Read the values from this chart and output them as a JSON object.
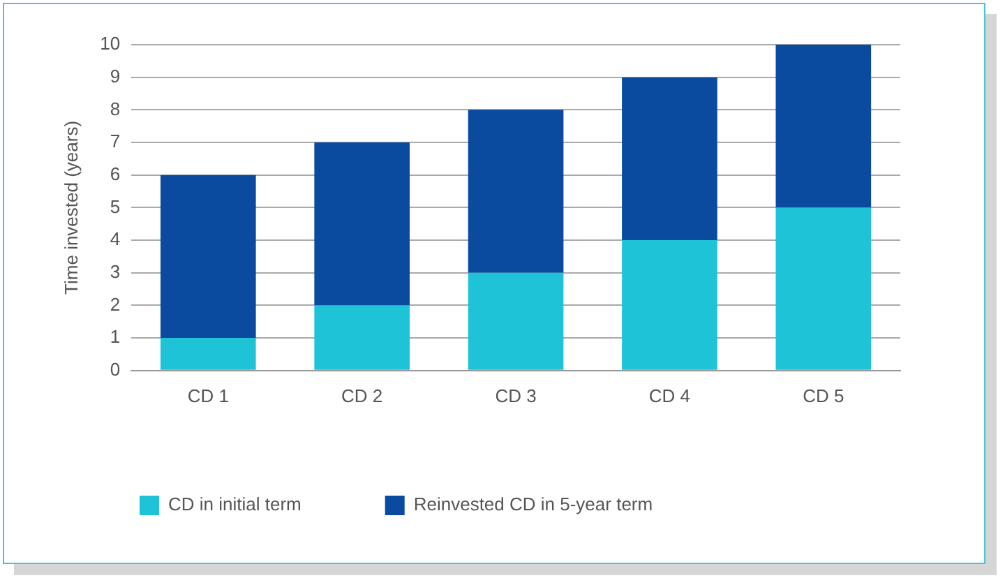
{
  "chart_data": {
    "type": "bar",
    "categories": [
      "CD 1",
      "CD 2",
      "CD 3",
      "CD 4",
      "CD 5"
    ],
    "series": [
      {
        "name": "CD in initial term",
        "color": "#1fc3d8",
        "values": [
          1,
          2,
          3,
          4,
          5
        ]
      },
      {
        "name": "Reinvested CD in 5-year term",
        "color": "#0a4a9f",
        "values": [
          5,
          5,
          5,
          5,
          5
        ]
      }
    ],
    "stacked": true,
    "ylabel": "Time invested (years)",
    "ylim": [
      0,
      10
    ],
    "yticks": [
      0,
      1,
      2,
      3,
      4,
      5,
      6,
      7,
      8,
      9,
      10
    ],
    "grid": "y",
    "legend": "bottom left"
  }
}
